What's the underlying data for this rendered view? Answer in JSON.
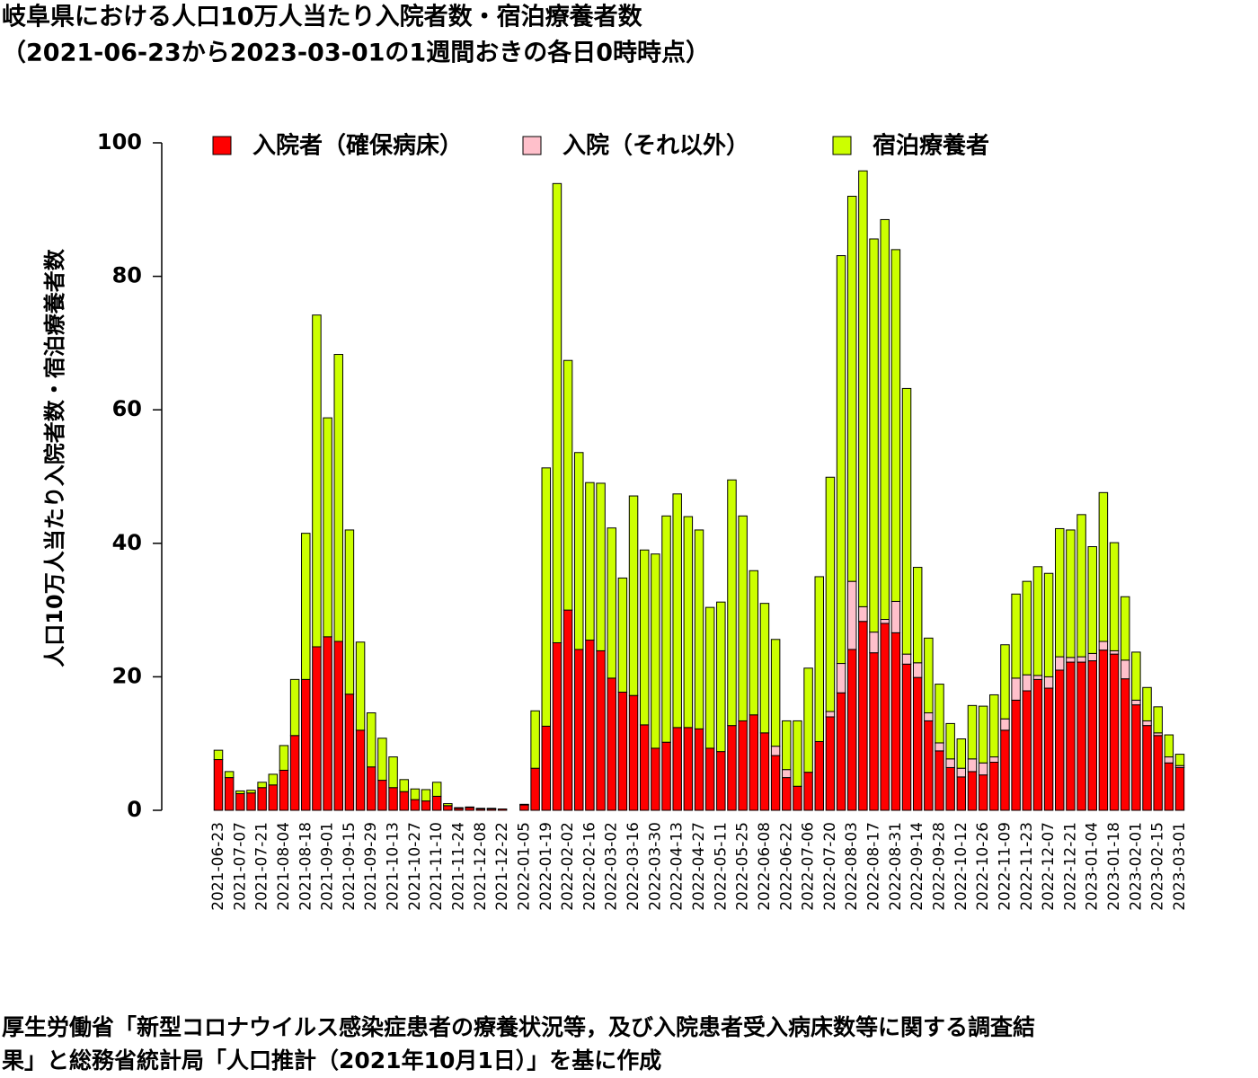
{
  "chart_data": {
    "type": "stacked_bar",
    "title": "岐阜県における人口10万人当たり入院者数・宿泊療養者数",
    "subtitle": "（2021-06-23から2023-03-01の1週間おきの各日0時時点）",
    "y_label": "人口10万人当たり入院者数・宿泊療養者数",
    "note": [
      "厚生労働省「新型コロナウイルス感染症患者の療養状況等，及び入院患者受入病床数等に関する調査結",
      "果」と総務省統計局「人口推計（2021年10月1日）」を基に作成"
    ],
    "categories": [
      "2021-06-23",
      null,
      "2021-07-07",
      null,
      "2021-07-21",
      null,
      "2021-08-04",
      null,
      "2021-08-18",
      null,
      "2021-09-01",
      null,
      "2021-09-15",
      null,
      "2021-09-29",
      null,
      "2021-10-13",
      null,
      "2021-10-27",
      null,
      "2021-11-10",
      null,
      "2021-11-24",
      null,
      "2021-12-08",
      null,
      "2021-12-22",
      null,
      "2022-01-05",
      null,
      "2022-01-19",
      null,
      "2022-02-02",
      null,
      "2022-02-16",
      null,
      "2022-03-02",
      null,
      "2022-03-16",
      null,
      "2022-03-30",
      null,
      "2022-04-13",
      null,
      "2022-04-27",
      null,
      "2022-05-11",
      null,
      "2022-05-25",
      null,
      "2022-06-08",
      null,
      "2022-06-22",
      null,
      "2022-07-06",
      null,
      "2022-07-20",
      null,
      "2022-08-03",
      null,
      "2022-08-17",
      null,
      "2022-08-31",
      null,
      "2022-09-14",
      null,
      "2022-09-28",
      null,
      "2022-10-12",
      null,
      "2022-10-26",
      null,
      "2022-11-09",
      null,
      "2022-11-23",
      null,
      "2022-12-07",
      null,
      "2022-12-21",
      null,
      "2023-01-04",
      null,
      "2023-01-18",
      null,
      "2023-02-01",
      null,
      "2023-02-15",
      null,
      "2023-03-01"
    ],
    "series": [
      {
        "name": "入院者（確保病床）",
        "color": "#ff0000",
        "values": [
          7.6,
          4.9,
          2.5,
          2.6,
          3.4,
          3.8,
          6.0,
          11.2,
          19.6,
          24.5,
          26.0,
          25.3,
          17.4,
          12.0,
          6.5,
          4.5,
          3.4,
          2.8,
          1.6,
          1.4,
          2.1,
          0.7,
          0.3,
          0.4,
          0.2,
          0.2,
          0.2,
          0,
          0.8,
          6.3,
          12.6,
          25.1,
          30.0,
          24.1,
          25.5,
          23.9,
          19.8,
          17.7,
          17.2,
          12.8,
          9.3,
          10.2,
          12.4,
          12.4,
          12.2,
          9.3,
          8.8,
          12.7,
          13.4,
          14.3,
          11.6,
          8.2,
          4.9,
          3.6,
          5.7,
          10.3,
          14.0,
          17.6,
          24.1,
          28.3,
          23.6,
          28.0,
          26.6,
          21.9,
          19.9,
          13.4,
          8.9,
          6.4,
          5.0,
          5.8,
          5.3,
          7.2,
          12.0,
          16.5,
          17.9,
          19.6,
          18.3,
          21.0,
          22.2,
          22.2,
          22.4,
          24.0,
          23.4,
          19.7,
          15.8,
          12.7,
          11.2,
          7.1,
          6.4
        ]
      },
      {
        "name": "入院（それ以外）",
        "color": "#ffc0cb",
        "values": [
          0,
          0,
          0,
          0,
          0,
          0,
          0,
          0,
          0,
          0,
          0,
          0,
          0,
          0,
          0,
          0,
          0,
          0,
          0,
          0,
          0,
          0,
          0,
          0,
          0,
          0,
          0,
          0,
          0,
          0,
          0,
          0,
          0,
          0,
          0,
          0,
          0,
          0,
          0,
          0,
          0,
          0,
          0,
          0,
          0,
          0,
          0,
          0,
          0,
          0,
          0,
          1.4,
          1.2,
          0,
          0,
          0,
          0.8,
          4.4,
          10.2,
          2.2,
          3.1,
          0.6,
          4.7,
          1.5,
          2.2,
          1.2,
          1.2,
          1.3,
          1.3,
          1.9,
          1.8,
          0.8,
          1.7,
          3.3,
          2.4,
          0.6,
          1.7,
          2.0,
          0.7,
          0.8,
          1.1,
          1.3,
          0.5,
          2.8,
          0.7,
          0.7,
          0.4,
          0.9,
          0.3
        ]
      },
      {
        "name": "宿泊療養者",
        "color": "#ccff00",
        "values": [
          1.4,
          0.9,
          0.4,
          0.4,
          0.8,
          1.6,
          3.7,
          8.4,
          21.9,
          49.7,
          32.8,
          43.0,
          24.6,
          13.2,
          8.1,
          6.3,
          4.6,
          1.8,
          1.6,
          1.7,
          2.1,
          0.3,
          0.1,
          0.1,
          0.1,
          0.1,
          0,
          0,
          0.1,
          8.6,
          38.7,
          68.8,
          37.4,
          29.5,
          23.6,
          25.1,
          22.5,
          17.1,
          29.9,
          26.2,
          29.1,
          33.9,
          35.0,
          31.6,
          29.8,
          21.1,
          22.4,
          36.8,
          30.7,
          21.6,
          19.4,
          16.0,
          7.3,
          9.8,
          15.6,
          24.7,
          35.1,
          61.1,
          57.7,
          65.3,
          58.9,
          59.9,
          52.7,
          39.8,
          14.3,
          11.2,
          8.8,
          5.3,
          4.4,
          8.0,
          8.5,
          9.3,
          11.1,
          12.6,
          14.0,
          16.3,
          15.5,
          19.2,
          19.1,
          21.3,
          16.0,
          22.3,
          16.2,
          9.5,
          7.2,
          5.0,
          3.9,
          3.3,
          1.7
        ]
      }
    ],
    "ylim": [
      0,
      100
    ],
    "yticks": [
      0,
      20,
      40,
      60,
      80,
      100
    ],
    "legend": "top"
  }
}
